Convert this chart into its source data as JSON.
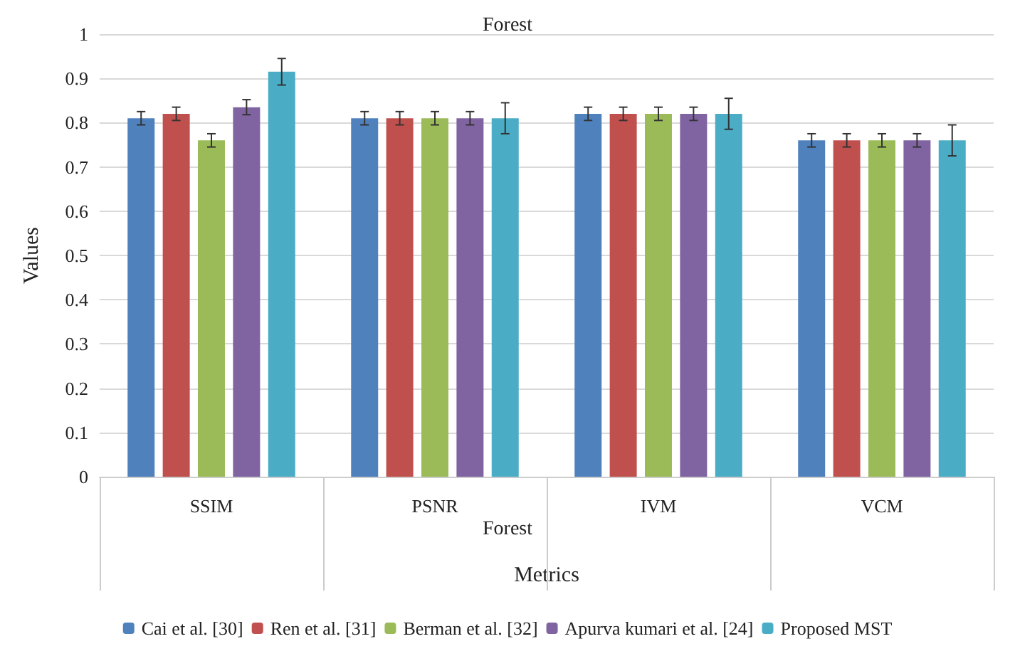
{
  "chart_data": {
    "type": "bar",
    "title": "Forest",
    "xlabel": "Metrics",
    "ylabel": "Values",
    "categories": [
      "SSIM",
      "PSNR",
      "IVM",
      "VCM"
    ],
    "series": [
      {
        "name": "Cai et al. [30]",
        "color": "#4f81bd",
        "values": [
          0.81,
          0.81,
          0.82,
          0.76
        ],
        "errors": [
          0.015,
          0.015,
          0.015,
          0.015
        ]
      },
      {
        "name": "Ren et al. [31]",
        "color": "#c0504d",
        "values": [
          0.82,
          0.81,
          0.82,
          0.76
        ],
        "errors": [
          0.015,
          0.015,
          0.015,
          0.015
        ]
      },
      {
        "name": "Berman et al. [32]",
        "color": "#9bbb59",
        "values": [
          0.76,
          0.81,
          0.82,
          0.76
        ],
        "errors": [
          0.015,
          0.015,
          0.015,
          0.015
        ]
      },
      {
        "name": "Apurva kumari et al. [24]",
        "color": "#8064a2",
        "values": [
          0.835,
          0.81,
          0.82,
          0.76
        ],
        "errors": [
          0.017,
          0.015,
          0.015,
          0.015
        ]
      },
      {
        "name": "Proposed MST",
        "color": "#4bacc6",
        "values": [
          0.915,
          0.81,
          0.82,
          0.76
        ],
        "errors": [
          0.03,
          0.035,
          0.035,
          0.035
        ]
      }
    ],
    "ylim": [
      0,
      1
    ],
    "yticks": [
      0,
      0.1,
      0.2,
      0.3,
      0.4,
      0.5,
      0.6,
      0.7,
      0.8,
      0.9,
      1
    ],
    "annotations": [
      "Forest"
    ],
    "grid": "y",
    "legend": "bottom"
  }
}
